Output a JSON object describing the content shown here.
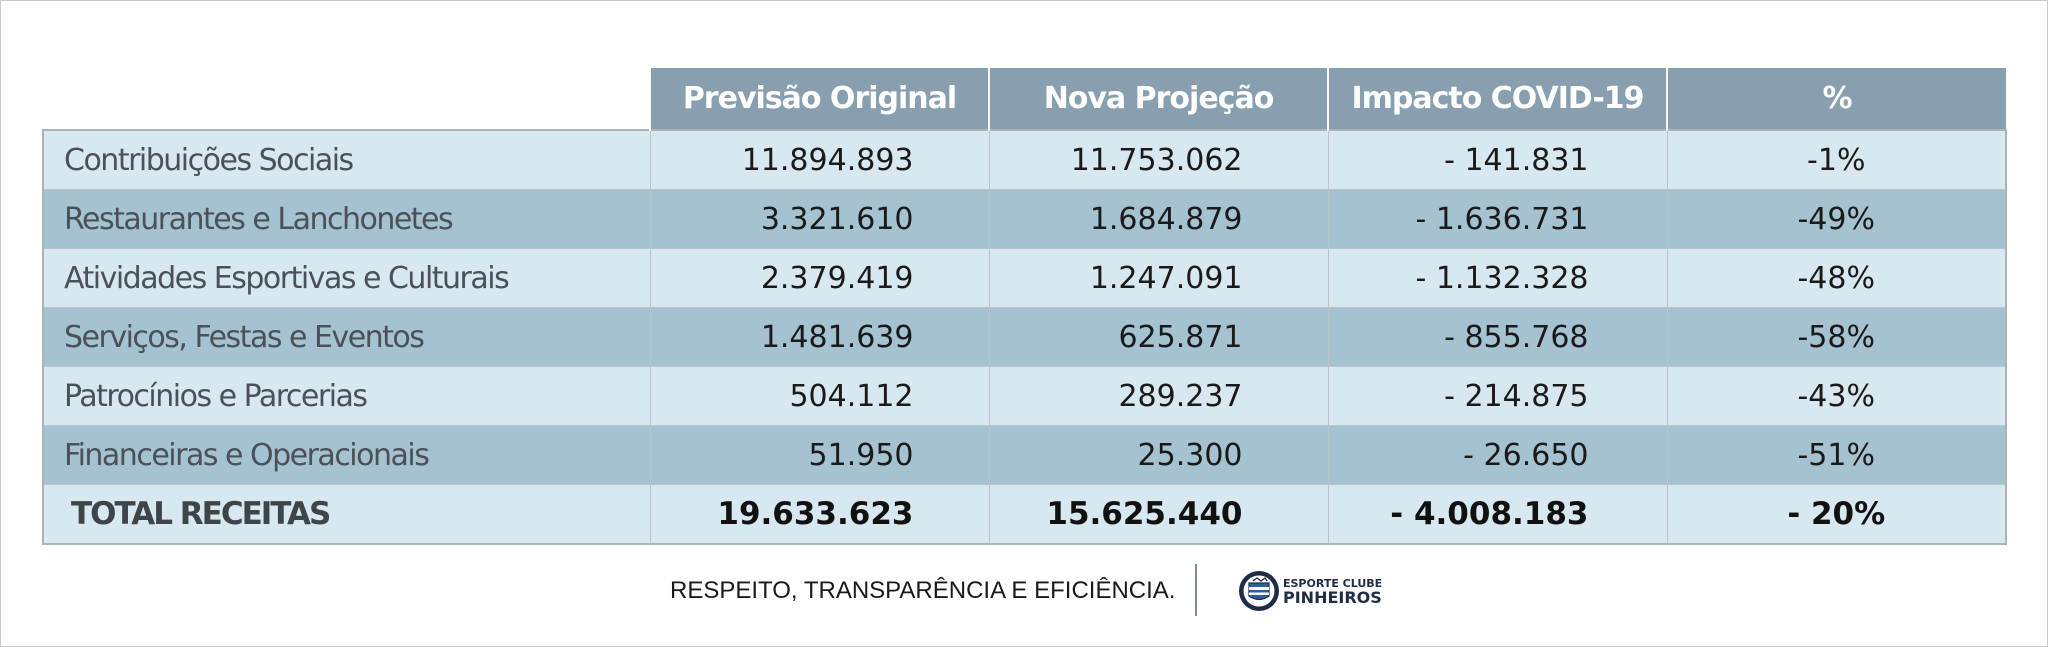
{
  "table": {
    "headers": [
      "",
      "Previsão Original",
      "Nova Projeção",
      "Impacto COVID-19",
      "%"
    ],
    "rows": [
      {
        "label": "Contribuições Sociais",
        "original": "11.894.893",
        "nova": "11.753.062",
        "impacto": "- 141.831",
        "pct": "-1%"
      },
      {
        "label": "Restaurantes e Lanchonetes",
        "original": "3.321.610",
        "nova": "1.684.879",
        "impacto": "- 1.636.731",
        "pct": "-49%"
      },
      {
        "label": "Atividades Esportivas e Culturais",
        "original": "2.379.419",
        "nova": "1.247.091",
        "impacto": "- 1.132.328",
        "pct": "-48%"
      },
      {
        "label": "Serviços, Festas e Eventos",
        "original": "1.481.639",
        "nova": "625.871",
        "impacto": "- 855.768",
        "pct": "-58%"
      },
      {
        "label": "Patrocínios e Parcerias",
        "original": "504.112",
        "nova": "289.237",
        "impacto": "- 214.875",
        "pct": "-43%"
      },
      {
        "label": "Financeiras e Operacionais",
        "original": "51.950",
        "nova": "25.300",
        "impacto": "- 26.650",
        "pct": "-51%"
      }
    ],
    "total": {
      "label": "TOTAL RECEITAS",
      "original": "19.633.623",
      "nova": "15.625.440",
      "impacto": "- 4.008.183",
      "pct": "- 20%"
    }
  },
  "footer": {
    "motto": "RESPEITO, TRANSPARÊNCIA E EFICIÊNCIA.",
    "brand_top": "ESPORTE CLUBE",
    "brand_main": "PINHEIROS",
    "logo_icon": "club-crest-icon"
  },
  "colors": {
    "header_bg": "#879fae",
    "row_light": "#d8e8f0",
    "row_dark": "#a5c2d0",
    "brand_navy": "#1e2c44"
  }
}
